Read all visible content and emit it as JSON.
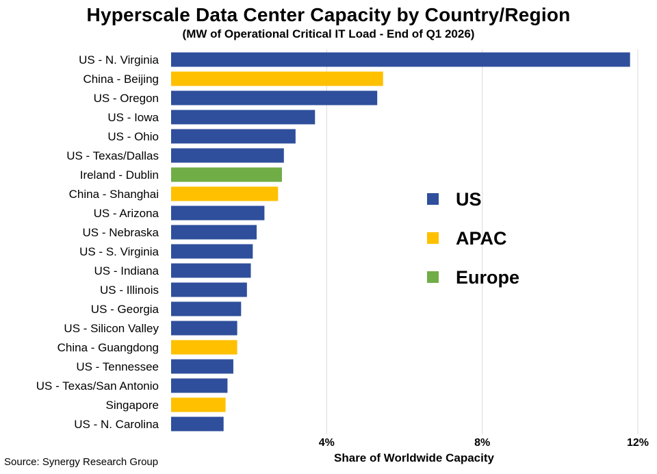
{
  "chart_data": {
    "type": "bar",
    "orientation": "horizontal",
    "title": "Hyperscale Data Center Capacity by Country/Region",
    "subtitle": "(MW of Operational Critical IT Load - End of Q1 2026)",
    "xlabel": "Share of Worldwide Capacity",
    "ylabel": "",
    "xlim": [
      0,
      12
    ],
    "xticks": [
      4,
      8,
      12
    ],
    "xtick_labels": [
      "4%",
      "8%",
      "12%"
    ],
    "grid": true,
    "legend_position": "right-center",
    "legend": [
      {
        "name": "US",
        "color": "#2F4F9C"
      },
      {
        "name": "APAC",
        "color": "#FFC000"
      },
      {
        "name": "Europe",
        "color": "#70AD47"
      }
    ],
    "categories": [
      "US - N. Virginia",
      "China - Beijing",
      "US - Oregon",
      "US - Iowa",
      "US - Ohio",
      "US - Texas/Dallas",
      "Ireland - Dublin",
      "China - Shanghai",
      "US - Arizona",
      "US - Nebraska",
      "US - S. Virginia",
      "US - Indiana",
      "US - Illinois",
      "US - Georgia",
      "US - Silicon Valley",
      "China - Guangdong",
      "US - Tennessee",
      "US - Texas/San Antonio",
      "Singapore",
      "US - N. Carolina"
    ],
    "values": [
      11.8,
      5.45,
      5.3,
      3.7,
      3.2,
      2.9,
      2.85,
      2.75,
      2.4,
      2.2,
      2.1,
      2.05,
      1.95,
      1.8,
      1.7,
      1.7,
      1.6,
      1.45,
      1.4,
      1.35
    ],
    "groups": [
      "US",
      "APAC",
      "US",
      "US",
      "US",
      "US",
      "Europe",
      "APAC",
      "US",
      "US",
      "US",
      "US",
      "US",
      "US",
      "US",
      "APAC",
      "US",
      "US",
      "APAC",
      "US"
    ]
  },
  "source": "Source: Synergy Research Group"
}
